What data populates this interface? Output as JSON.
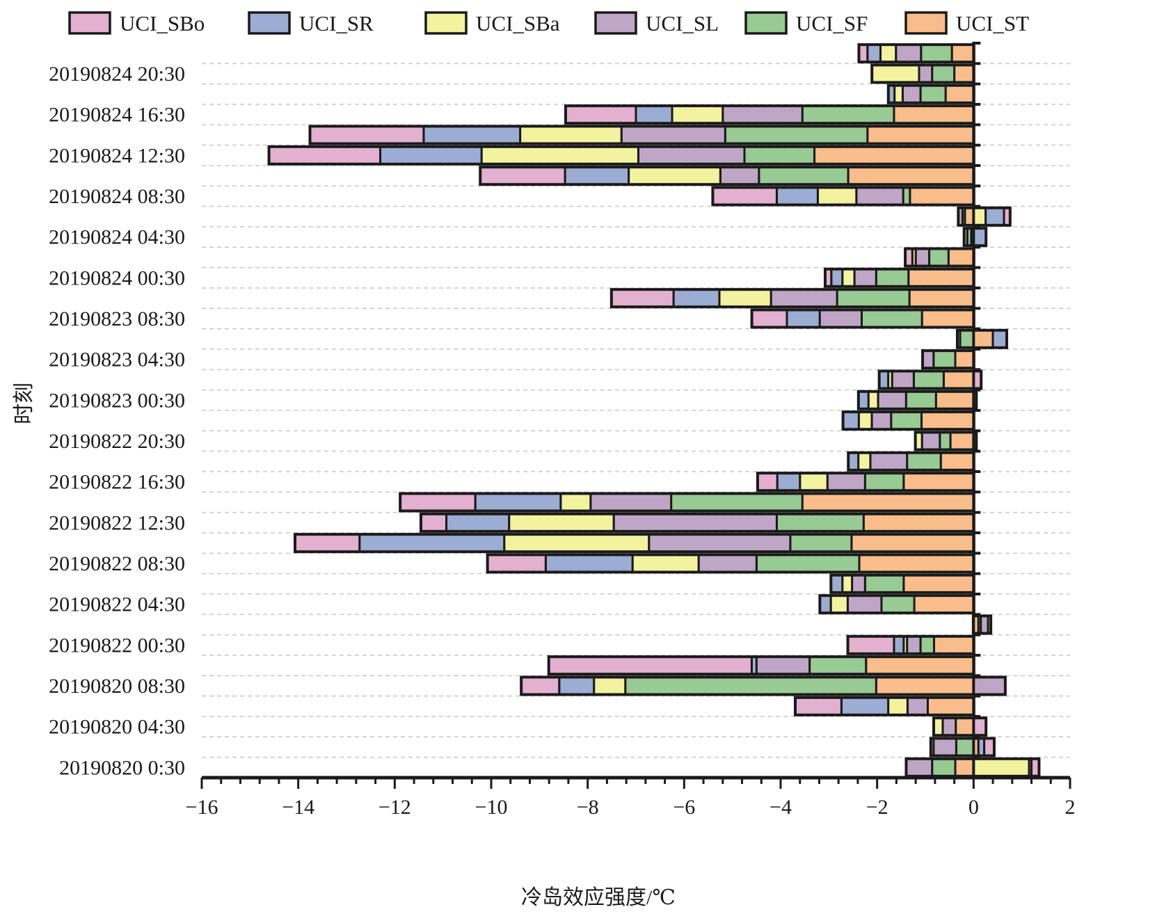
{
  "chart_data": {
    "type": "bar",
    "orientation": "horizontal",
    "stacked": true,
    "title": "",
    "xlabel": "冷岛效应强度/℃",
    "ylabel": "时刻",
    "xlim": [
      -16,
      2
    ],
    "x_ticks": [
      -16,
      -14,
      -12,
      -10,
      -8,
      -6,
      -4,
      -2,
      0,
      2
    ],
    "x_tick_labels": [
      "−16",
      "−14",
      "−12",
      "−10",
      "−8",
      "−6",
      "−4",
      "−2",
      "0",
      "2"
    ],
    "grid": "horizontal dashed",
    "legend_position": "top",
    "series_names": [
      "UCI_SBo",
      "UCI_SR",
      "UCI_SBa",
      "UCI_SL",
      "UCI_SF",
      "UCI_ST"
    ],
    "colors": {
      "UCI_SBo": "#e3b0cf",
      "UCI_SR": "#9cadd3",
      "UCI_SBa": "#f3f29f",
      "UCI_SL": "#c0a6c6",
      "UCI_SF": "#98ca93",
      "UCI_ST": "#f8bd8a"
    },
    "categories_top_to_bottom": [
      "",
      "20190824 20:30",
      "",
      "20190824 16:30",
      "",
      "20190824 12:30",
      "",
      "20190824 08:30",
      "",
      "20190824 04:30",
      "",
      "20190824 00:30",
      "",
      "20190823 08:30",
      "",
      "20190823 04:30",
      "",
      "20190823 00:30",
      "",
      "20190822 20:30",
      "",
      "20190822 16:30",
      "",
      "20190822 12:30",
      "",
      "20190822 08:30",
      "",
      "20190822 04:30",
      "",
      "20190822 00:30",
      "",
      "20190820 08:30",
      "",
      "20190820 04:30",
      "",
      "20190820 0:30"
    ],
    "series": [
      {
        "name": "UCI_ST",
        "values": [
          -0.45,
          -0.4,
          -0.58,
          -1.65,
          -2.2,
          -3.3,
          -2.6,
          -1.32,
          -0.18,
          -0.05,
          -0.52,
          -1.35,
          -1.33,
          -1.07,
          0.4,
          -0.38,
          -0.62,
          -0.78,
          -1.08,
          -0.48,
          -0.68,
          -1.45,
          -3.55,
          -2.28,
          -2.53,
          -2.37,
          -1.45,
          -1.23,
          0.1,
          -0.82,
          -2.23,
          -2.02,
          -0.95,
          -0.37,
          0.1,
          -0.38
        ]
      },
      {
        "name": "UCI_SF",
        "values": [
          -0.64,
          -0.46,
          -0.52,
          -1.9,
          -2.95,
          -1.45,
          -1.85,
          -0.14,
          -0.05,
          -0.08,
          -0.4,
          -0.67,
          -1.5,
          -1.25,
          -0.28,
          -0.45,
          -0.62,
          -0.62,
          -0.63,
          -0.22,
          -0.7,
          -0.8,
          -2.72,
          -1.8,
          -1.27,
          -2.13,
          -0.8,
          -0.68,
          0.05,
          -0.28,
          -1.17,
          -5.2,
          0.0,
          0.0,
          -0.36,
          -0.48
        ]
      },
      {
        "name": "UCI_SL",
        "values": [
          -0.52,
          -0.27,
          -0.37,
          -1.65,
          -2.15,
          -2.2,
          -0.8,
          -0.97,
          -0.08,
          -0.06,
          -0.28,
          -0.45,
          -1.37,
          -0.87,
          -0.05,
          -0.22,
          -0.45,
          -0.58,
          -0.4,
          -0.37,
          -0.76,
          -0.78,
          -1.67,
          -3.38,
          -2.93,
          -1.2,
          -0.27,
          -0.7,
          0.15,
          -0.28,
          -1.1,
          0.65,
          -0.42,
          -0.27,
          -0.47,
          -0.53
        ]
      },
      {
        "name": "UCI_SBa",
        "values": [
          -0.32,
          -0.97,
          -0.17,
          -1.05,
          -2.1,
          -3.25,
          -1.9,
          -0.8,
          0.25,
          0.0,
          -0.07,
          -0.25,
          -1.07,
          0.0,
          0.0,
          0.0,
          -0.08,
          -0.2,
          -0.27,
          -0.13,
          -0.25,
          -0.57,
          -0.62,
          -2.17,
          -3.0,
          -1.37,
          -0.2,
          -0.35,
          0.05,
          -0.07,
          0.0,
          -0.65,
          -0.4,
          -0.18,
          -0.05,
          1.15
        ]
      },
      {
        "name": "UCI_SR",
        "values": [
          -0.27,
          0.0,
          -0.12,
          -0.75,
          -2.0,
          -2.1,
          -1.32,
          -0.85,
          0.38,
          0.25,
          0.0,
          -0.23,
          -0.95,
          -0.68,
          0.28,
          0.0,
          -0.18,
          -0.2,
          -0.32,
          0.05,
          -0.2,
          -0.47,
          -1.77,
          -1.3,
          -3.0,
          -1.8,
          -0.23,
          -0.22,
          0.0,
          -0.2,
          -0.1,
          -0.72,
          -0.97,
          0.0,
          0.12,
          0.05
        ]
      },
      {
        "name": "UCI_SBo",
        "values": [
          -0.17,
          0.0,
          0.0,
          -1.45,
          -2.35,
          -2.3,
          -1.75,
          -1.32,
          0.12,
          0.0,
          -0.14,
          -0.12,
          -1.28,
          -0.72,
          0.0,
          0.0,
          0.15,
          0.05,
          0.0,
          0.0,
          0.0,
          -0.4,
          -1.55,
          -0.52,
          -1.33,
          -1.2,
          0.0,
          0.0,
          0.0,
          -0.95,
          -4.2,
          -0.78,
          -0.95,
          0.25,
          0.2,
          0.15
        ]
      }
    ]
  },
  "legend": {
    "items": [
      "UCI_SBo",
      "UCI_SR",
      "UCI_SBa",
      "UCI_SL",
      "UCI_SF",
      "UCI_ST"
    ]
  },
  "axes": {
    "xlabel": "冷岛效应强度/℃",
    "ylabel": "时刻"
  }
}
